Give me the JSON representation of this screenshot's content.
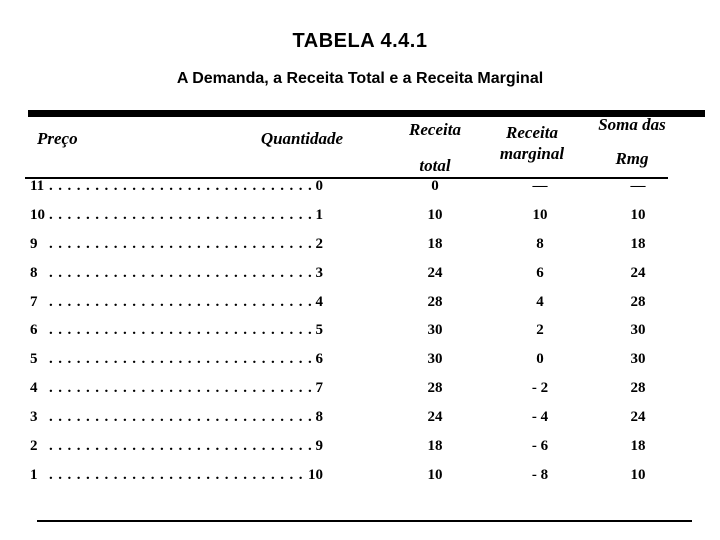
{
  "title": "TABELA 4.4.1",
  "subtitle": "A Demanda, a Receita Total e a Receita Marginal",
  "table": {
    "headers": {
      "price": "Preço",
      "quantity": "Quantidade",
      "total_line1": "Receita",
      "total_line2": "total",
      "marginal_line1": "Receita",
      "marginal_line2": "marginal",
      "soma_line1": "Soma das",
      "soma_line2": "Rmg"
    },
    "rows": [
      {
        "price": "11",
        "qty": "0",
        "total": "0",
        "marginal": "—",
        "soma": "—"
      },
      {
        "price": "10",
        "qty": "1",
        "total": "10",
        "marginal": "10",
        "soma": "10"
      },
      {
        "price": "9",
        "qty": "2",
        "total": "18",
        "marginal": "8",
        "soma": "18"
      },
      {
        "price": "8",
        "qty": "3",
        "total": "24",
        "marginal": "6",
        "soma": "24"
      },
      {
        "price": "7",
        "qty": "4",
        "total": "28",
        "marginal": "4",
        "soma": "28"
      },
      {
        "price": "6",
        "qty": "5",
        "total": "30",
        "marginal": "2",
        "soma": "30"
      },
      {
        "price": "5",
        "qty": "6",
        "total": "30",
        "marginal": "0",
        "soma": "30"
      },
      {
        "price": "4",
        "qty": "7",
        "total": "28",
        "marginal": "- 2",
        "soma": "28"
      },
      {
        "price": "3",
        "qty": "8",
        "total": "24",
        "marginal": "- 4",
        "soma": "24"
      },
      {
        "price": "2",
        "qty": "9",
        "total": "18",
        "marginal": "- 6",
        "soma": "18"
      },
      {
        "price": "1",
        "qty": "10",
        "total": "10",
        "marginal": "- 8",
        "soma": "10"
      }
    ]
  },
  "colors": {
    "text": "#000000",
    "background": "#ffffff",
    "rule": "#000000"
  },
  "chart_data": {
    "type": "table",
    "title": "TABELA 4.4.1",
    "subtitle": "A Demanda, a Receita Total e a Receita Marginal",
    "columns": [
      "Preço",
      "Quantidade",
      "Receita total",
      "Receita marginal",
      "Soma das Rmg"
    ],
    "rows": [
      [
        11,
        0,
        0,
        null,
        null
      ],
      [
        10,
        1,
        10,
        10,
        10
      ],
      [
        9,
        2,
        18,
        8,
        18
      ],
      [
        8,
        3,
        24,
        6,
        24
      ],
      [
        7,
        4,
        28,
        4,
        28
      ],
      [
        6,
        5,
        30,
        2,
        30
      ],
      [
        5,
        6,
        30,
        0,
        30
      ],
      [
        4,
        7,
        28,
        -2,
        28
      ],
      [
        3,
        8,
        24,
        -4,
        24
      ],
      [
        2,
        9,
        18,
        -6,
        18
      ],
      [
        1,
        10,
        10,
        -8,
        10
      ]
    ]
  }
}
